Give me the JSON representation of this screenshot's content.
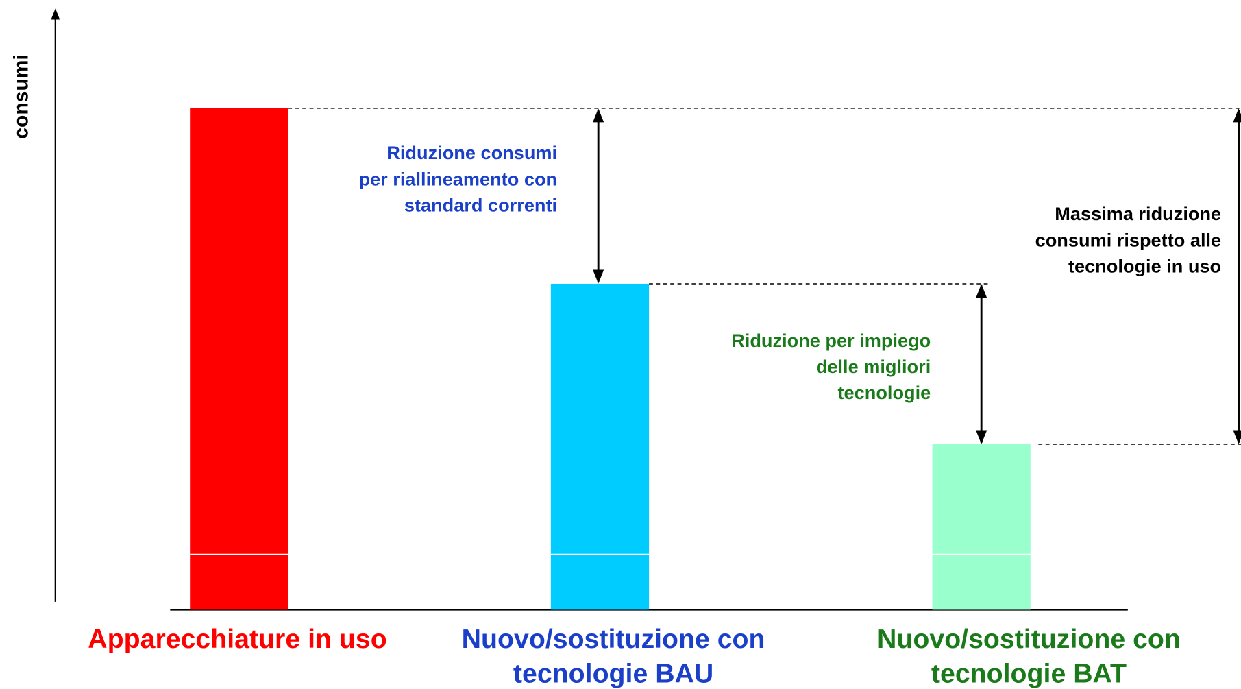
{
  "chart_data": {
    "type": "bar",
    "y_axis_label": "consumi",
    "categories": [
      "Apparecchiature in uso",
      "Nuovo/sostituzione con tecnologie BAU",
      "Nuovo/sostituzione con tecnologie BAT"
    ],
    "values": [
      100,
      65,
      33
    ],
    "colors": [
      "#ff0000",
      "#00ccff",
      "#99ffcc"
    ],
    "label_colors": [
      "#ff0000",
      "#1a3fc8",
      "#1a7a1a"
    ],
    "ylim": [
      0,
      120
    ],
    "annotations": [
      {
        "text": "Riduzione consumi per riallineamento con standard correnti",
        "color": "#1a3fc8"
      },
      {
        "text": "Riduzione per impiego delle migliori tecnologie",
        "color": "#1a7a1a"
      },
      {
        "text": "Massima riduzione consumi rispetto alle tecnologie in uso",
        "color": "#000000"
      }
    ]
  }
}
